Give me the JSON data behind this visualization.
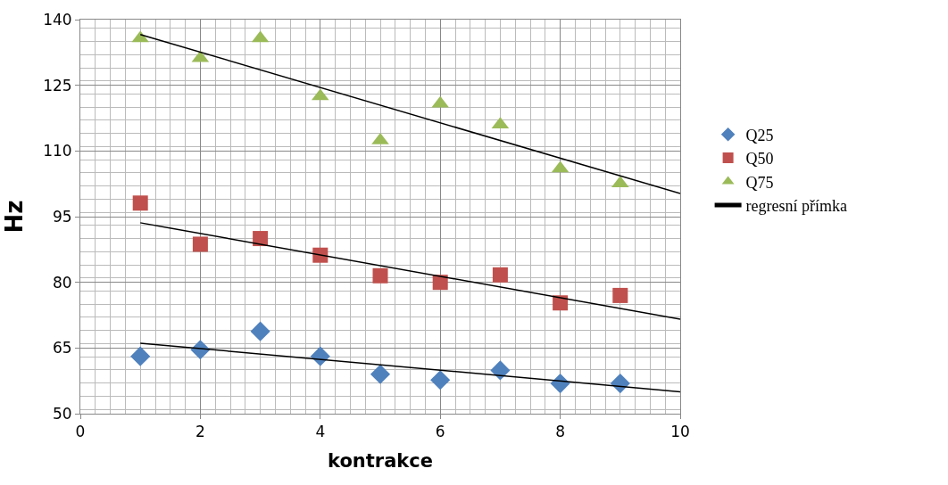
{
  "chart_data": {
    "type": "scatter",
    "xlabel": "kontrakce",
    "ylabel": "Hz",
    "x": [
      1,
      2,
      3,
      4,
      5,
      6,
      7,
      8,
      9,
      10
    ],
    "series": [
      {
        "name": "Q25",
        "color": "#4f81bd",
        "marker": "diamond",
        "values": [
          63.1,
          64.6,
          68.8,
          63.1,
          59.0,
          57.7,
          59.9,
          56.9,
          56.9,
          null
        ]
      },
      {
        "name": "Q50",
        "color": "#c0504d",
        "marker": "square",
        "values": [
          98.1,
          88.7,
          90.0,
          86.2,
          81.5,
          80.0,
          81.7,
          75.3,
          77.0,
          null
        ]
      },
      {
        "name": "Q75",
        "color": "#9bbb59",
        "marker": "triangle",
        "values": [
          135.7,
          131.2,
          135.7,
          122.5,
          112.4,
          120.8,
          116.0,
          106.0,
          102.6,
          null
        ]
      },
      {
        "name": "regresní přímka",
        "type": "line",
        "color": "#000000",
        "values": [
          66.1,
          null,
          null,
          null,
          null,
          null,
          null,
          null,
          null,
          55.0
        ]
      },
      {
        "type": "line",
        "color": "#000000",
        "values": [
          93.6,
          null,
          null,
          null,
          null,
          null,
          null,
          null,
          null,
          71.6
        ]
      },
      {
        "type": "line",
        "color": "#000000",
        "values": [
          136.6,
          null,
          null,
          null,
          null,
          null,
          null,
          null,
          null,
          100.3
        ]
      }
    ],
    "xlim": [
      0,
      10
    ],
    "xticks": [
      0,
      2,
      4,
      6,
      8,
      10
    ],
    "ylim": [
      50,
      140
    ],
    "yticks": [
      50,
      65,
      80,
      95,
      110,
      125,
      140
    ],
    "grid": true,
    "legend": "right"
  }
}
